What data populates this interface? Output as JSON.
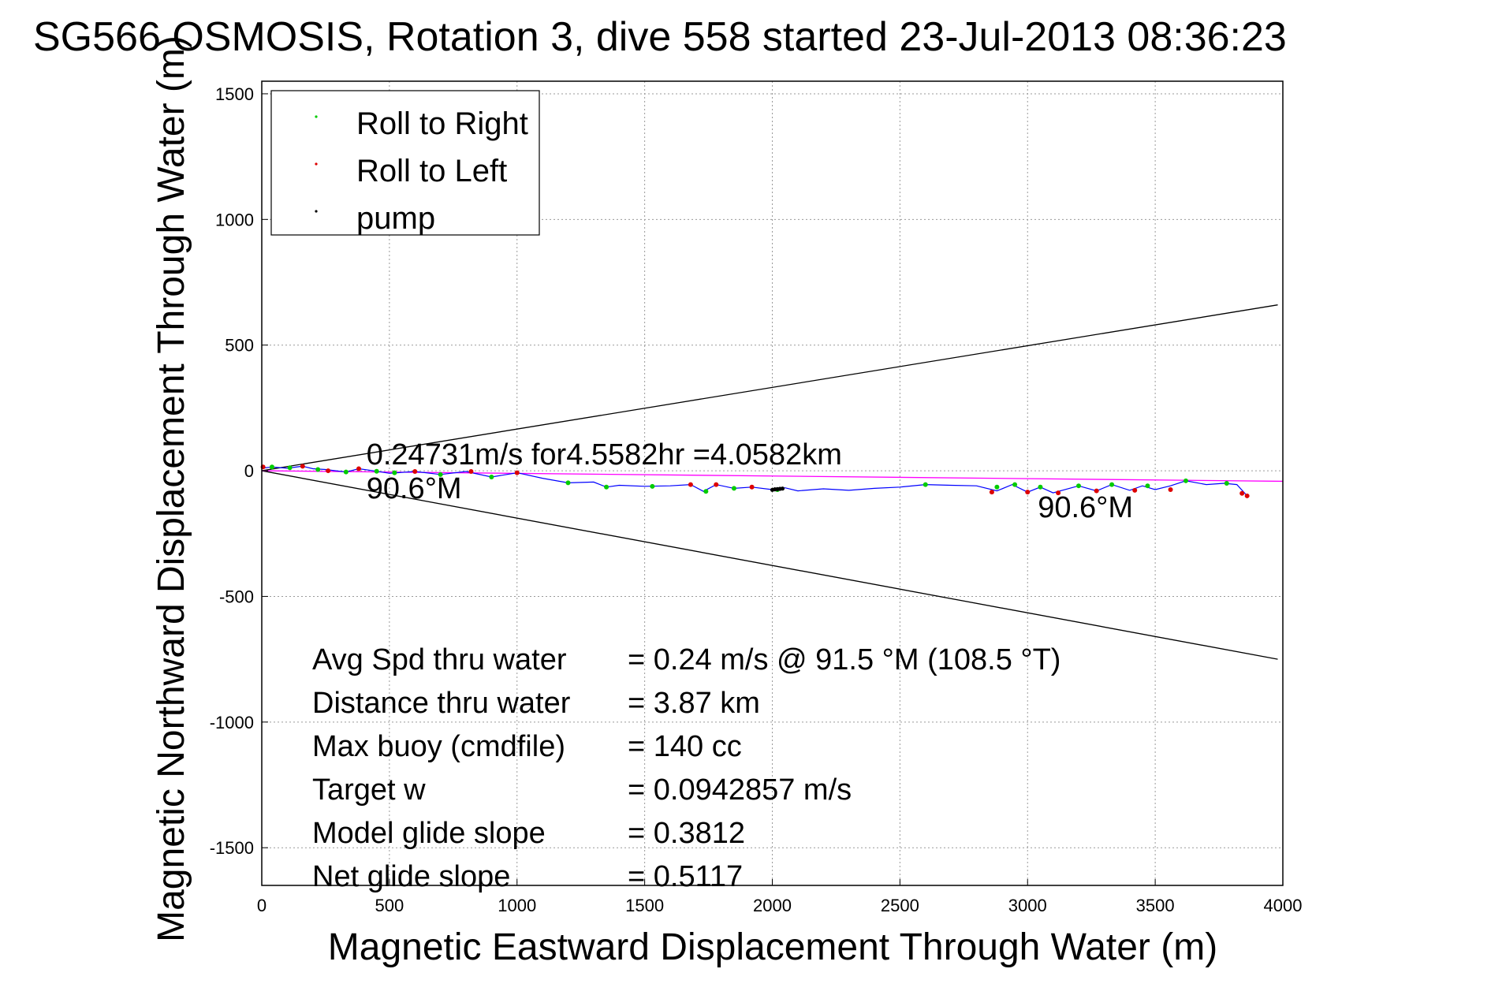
{
  "chart_data": {
    "type": "scatter",
    "title": "SG566 OSMOSIS, Rotation 3, dive 558 started 23-Jul-2013 08:36:23",
    "xlabel": "Magnetic Eastward Displacement Through Water (m)",
    "ylabel": "Magnetic Northward Displacement Through Water (m)",
    "xlim": [
      0,
      4000
    ],
    "ylim": [
      -1650,
      1550
    ],
    "xticks": [
      0,
      500,
      1000,
      1500,
      2000,
      2500,
      3000,
      3500,
      4000
    ],
    "yticks": [
      1500,
      1000,
      500,
      0,
      -500,
      -1000,
      -1500
    ],
    "grid": true,
    "legend_position": "top-left",
    "legend": [
      {
        "name": "Roll to Right",
        "color": "#00cc00"
      },
      {
        "name": "Roll to Left",
        "color": "#dd0000"
      },
      {
        "name": "pump",
        "color": "#000000"
      }
    ],
    "track": {
      "color": "#0000ff",
      "x": [
        0,
        40,
        100,
        160,
        200,
        250,
        330,
        380,
        450,
        500,
        600,
        700,
        800,
        900,
        1000,
        1100,
        1200,
        1300,
        1350,
        1400,
        1500,
        1600,
        1680,
        1730,
        1780,
        1850,
        1920,
        2000,
        2050,
        2100,
        2200,
        2300,
        2400,
        2500,
        2600,
        2700,
        2800,
        2880,
        2940,
        3000,
        3050,
        3100,
        3200,
        3270,
        3330,
        3400,
        3450,
        3500,
        3560,
        3620,
        3700,
        3770,
        3820,
        3860
      ],
      "y": [
        10,
        15,
        10,
        18,
        8,
        5,
        -5,
        8,
        -2,
        -10,
        -3,
        -15,
        -3,
        -25,
        -8,
        -30,
        -48,
        -45,
        -65,
        -58,
        -62,
        -60,
        -55,
        -82,
        -55,
        -70,
        -65,
        -75,
        -68,
        -80,
        -72,
        -78,
        -70,
        -65,
        -55,
        -58,
        -60,
        -80,
        -55,
        -85,
        -65,
        -88,
        -60,
        -80,
        -55,
        -78,
        -60,
        -75,
        -60,
        -40,
        -55,
        -50,
        -55,
        -100
      ]
    },
    "roll_right": {
      "x": [
        40,
        110,
        220,
        330,
        450,
        520,
        700,
        900,
        1200,
        1350,
        1530,
        1740,
        1850,
        2020,
        2600,
        2880,
        2950,
        3050,
        3200,
        3330,
        3470,
        3620,
        3780
      ],
      "y": [
        15,
        12,
        5,
        -5,
        -2,
        -8,
        -15,
        -25,
        -48,
        -65,
        -62,
        -82,
        -70,
        -75,
        -55,
        -65,
        -55,
        -65,
        -60,
        -55,
        -60,
        -40,
        -50
      ]
    },
    "roll_left": {
      "x": [
        5,
        160,
        260,
        380,
        600,
        820,
        1000,
        1680,
        1780,
        1920,
        2860,
        3000,
        3120,
        3270,
        3420,
        3560,
        3840,
        3860
      ],
      "y": [
        15,
        18,
        0,
        8,
        -3,
        -3,
        -8,
        -55,
        -55,
        -65,
        -85,
        -85,
        -88,
        -80,
        -78,
        -75,
        -90,
        -100
      ]
    },
    "pump": {
      "x": [
        2000,
        2010,
        2020,
        2030,
        2040
      ],
      "y": [
        -76,
        -74,
        -73,
        -72,
        -71
      ]
    },
    "heading_line": {
      "color": "#ff00ff",
      "x": [
        0,
        4000
      ],
      "y": [
        0,
        -42
      ]
    },
    "cone_lines": {
      "color": "#000000",
      "upper": {
        "x": [
          0,
          3980
        ],
        "y": [
          0,
          660
        ]
      },
      "lower": {
        "x": [
          0,
          3980
        ],
        "y": [
          0,
          -750
        ]
      }
    },
    "annotations": [
      {
        "text": "0.24731m/s for4.5582hr =4.0582km",
        "x": 410,
        "y": 25
      },
      {
        "text": "90.6°M",
        "x": 410,
        "y": -110
      },
      {
        "text": "90.6°M",
        "x": 3040,
        "y": -185
      }
    ],
    "stats": [
      {
        "label": "Avg Spd thru water",
        "value": "=  0.24 m/s @  91.5 °M (108.5 °T)"
      },
      {
        "label": "Distance thru water",
        "value": "=  3.87 km"
      },
      {
        "label": "Max buoy (cmdfile)",
        "value": "= 140 cc"
      },
      {
        "label": "Target w",
        "value": "= 0.0942857 m/s"
      },
      {
        "label": "Model glide slope",
        "value": "= 0.3812"
      },
      {
        "label": "Net glide slope",
        "value": "= 0.5117"
      }
    ]
  }
}
